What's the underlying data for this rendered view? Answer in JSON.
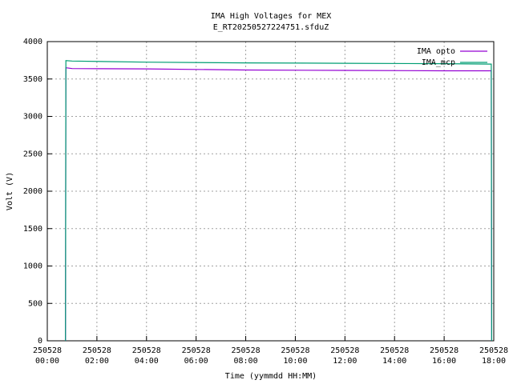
{
  "chart_data": {
    "type": "line",
    "title": "IMA High Voltages for MEX",
    "subtitle": "E_RT20250527224751.sfduZ",
    "x_label": "Time (yymmdd HH:MM)",
    "y_label": "Volt (V)",
    "x": [
      "250528 00:44",
      "250528 00:45",
      "250528 01:00",
      "250528 04:00",
      "250528 08:00",
      "250528 12:00",
      "250528 16:00",
      "250528 17:54",
      "250528 17:55"
    ],
    "series": [
      {
        "name": "IMA opto",
        "color": "#9400d3",
        "values": [
          0,
          3650,
          3640,
          3635,
          3620,
          3615,
          3610,
          3610,
          0
        ]
      },
      {
        "name": "IMA_mcp",
        "color": "#009e73",
        "values": [
          0,
          3745,
          3740,
          3725,
          3715,
          3710,
          3705,
          3700,
          0
        ]
      }
    ],
    "xlim": [
      "250528 00:00",
      "250528 18:00"
    ],
    "xticks": [
      "250528 00:00",
      "250528 02:00",
      "250528 04:00",
      "250528 06:00",
      "250528 08:00",
      "250528 10:00",
      "250528 12:00",
      "250528 14:00",
      "250528 16:00",
      "250528 18:00"
    ],
    "ylim": [
      0,
      4000
    ],
    "yticks": [
      0,
      500,
      1000,
      1500,
      2000,
      2500,
      3000,
      3500,
      4000
    ],
    "grid": true,
    "legend": "top-right"
  }
}
